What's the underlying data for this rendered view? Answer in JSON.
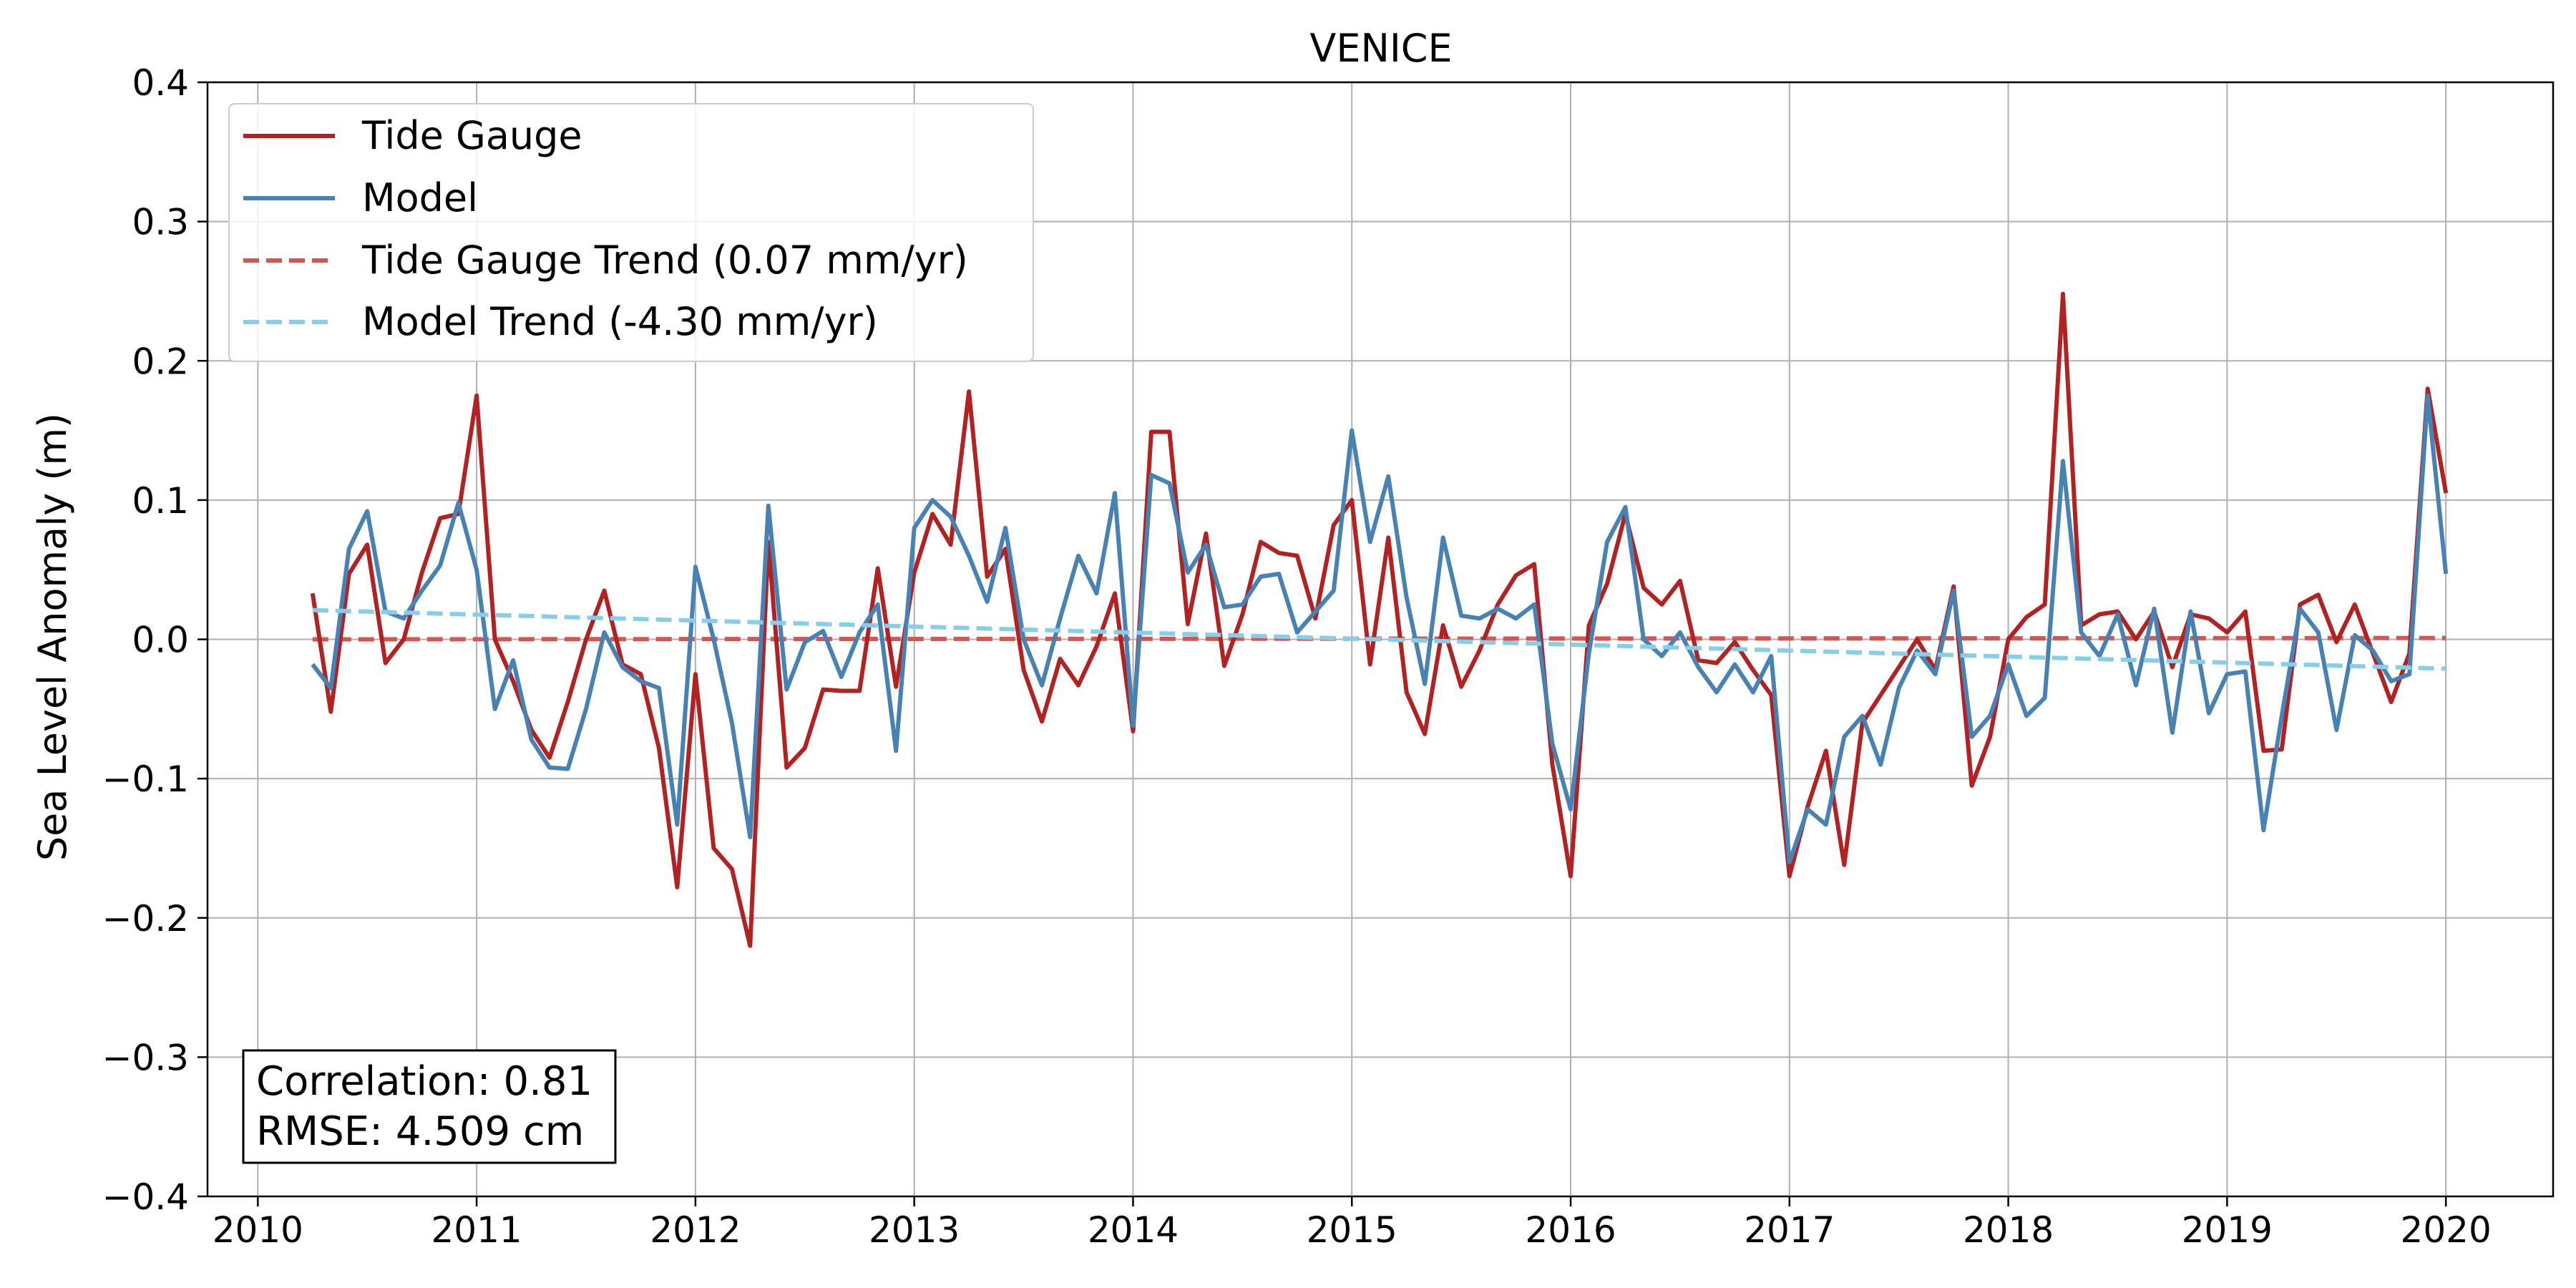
{
  "chart_data": {
    "type": "line",
    "title": "VENICE",
    "ylabel": "Sea Level Anomaly (m)",
    "xlabel": "",
    "xlim": [
      2009.77,
      2020.49
    ],
    "ylim": [
      -0.4,
      0.4
    ],
    "x_ticks": [
      2010,
      2011,
      2012,
      2013,
      2014,
      2015,
      2016,
      2017,
      2018,
      2019,
      2020
    ],
    "y_ticks": [
      -0.4,
      -0.3,
      -0.2,
      -0.1,
      0.0,
      0.1,
      0.2,
      0.3,
      0.4
    ],
    "y_tick_labels": [
      "−0.4",
      "−0.3",
      "−0.2",
      "−0.1",
      "0.0",
      "0.1",
      "0.2",
      "0.3",
      "0.4"
    ],
    "grid": true,
    "legend_position": "upper-left",
    "x_start": 2010.25,
    "x_step_months": 1,
    "series": [
      {
        "name": "Tide Gauge",
        "color": "#b22222",
        "style": "solid",
        "values": [
          0.033,
          -0.052,
          0.047,
          0.068,
          -0.017,
          0.0,
          0.048,
          0.087,
          0.09,
          0.175,
          0.0,
          -0.03,
          -0.065,
          -0.085,
          -0.045,
          0.0,
          0.035,
          -0.018,
          -0.025,
          -0.078,
          -0.178,
          -0.025,
          -0.15,
          -0.165,
          -0.22,
          0.07,
          -0.092,
          -0.078,
          -0.036,
          -0.037,
          -0.037,
          0.051,
          -0.034,
          0.048,
          0.09,
          0.068,
          0.178,
          0.045,
          0.065,
          -0.022,
          -0.059,
          -0.014,
          -0.033,
          -0.005,
          0.033,
          -0.066,
          0.149,
          0.149,
          0.011,
          0.076,
          -0.019,
          0.018,
          0.07,
          0.062,
          0.06,
          0.015,
          0.082,
          0.1,
          -0.018,
          0.073,
          -0.038,
          -0.068,
          0.01,
          -0.034,
          -0.008,
          0.025,
          0.046,
          0.054,
          -0.09,
          -0.17,
          0.01,
          0.04,
          0.09,
          0.037,
          0.025,
          0.042,
          -0.015,
          -0.017,
          -0.002,
          -0.022,
          -0.04,
          -0.17,
          -0.12,
          -0.08,
          -0.162,
          -0.06,
          -0.04,
          -0.02,
          0.0,
          -0.022,
          0.038,
          -0.105,
          -0.07,
          0.0,
          0.016,
          0.025,
          0.248,
          0.01,
          0.018,
          0.02,
          0.0,
          0.02,
          -0.02,
          0.018,
          0.015,
          0.005,
          0.02,
          -0.08,
          -0.079,
          0.025,
          0.032,
          -0.002,
          0.025,
          -0.01,
          -0.045,
          -0.01,
          0.18,
          0.105
        ]
      },
      {
        "name": "Model",
        "color": "#4682b4",
        "style": "solid",
        "values": [
          -0.018,
          -0.035,
          0.065,
          0.092,
          0.02,
          0.015,
          0.035,
          0.053,
          0.098,
          0.05,
          -0.05,
          -0.015,
          -0.072,
          -0.092,
          -0.093,
          -0.05,
          0.005,
          -0.02,
          -0.03,
          -0.035,
          -0.133,
          0.052,
          0.0,
          -0.06,
          -0.142,
          0.096,
          -0.036,
          -0.002,
          0.006,
          -0.027,
          0.005,
          0.025,
          -0.08,
          0.08,
          0.1,
          0.088,
          0.06,
          0.027,
          0.08,
          0.0,
          -0.033,
          0.015,
          0.06,
          0.033,
          0.105,
          -0.062,
          0.118,
          0.112,
          0.048,
          0.068,
          0.023,
          0.025,
          0.045,
          0.047,
          0.005,
          0.02,
          0.035,
          0.15,
          0.07,
          0.117,
          0.03,
          -0.032,
          0.073,
          0.017,
          0.015,
          0.022,
          0.015,
          0.025,
          -0.075,
          -0.122,
          -0.01,
          0.07,
          0.095,
          0.0,
          -0.012,
          0.005,
          -0.02,
          -0.038,
          -0.018,
          -0.038,
          -0.012,
          -0.16,
          -0.122,
          -0.133,
          -0.07,
          -0.055,
          -0.09,
          -0.035,
          -0.008,
          -0.025,
          0.035,
          -0.07,
          -0.055,
          -0.018,
          -0.055,
          -0.042,
          0.128,
          0.005,
          -0.012,
          0.018,
          -0.033,
          0.022,
          -0.067,
          0.02,
          -0.053,
          -0.025,
          -0.023,
          -0.137,
          -0.055,
          0.022,
          0.005,
          -0.065,
          0.003,
          -0.008,
          -0.03,
          -0.025,
          0.175,
          0.047
        ]
      },
      {
        "name": "Tide Gauge Trend (0.07 mm/yr)",
        "color": "#d9534f",
        "style": "dashed",
        "x": [
          2010.25,
          2020.0
        ],
        "values": [
          0.0,
          0.001
        ]
      },
      {
        "name": "Model Trend (-4.30 mm/yr)",
        "color": "#87ceeb",
        "style": "dashed",
        "x": [
          2010.25,
          2020.0
        ],
        "values": [
          0.021,
          -0.021
        ]
      }
    ],
    "annotation": {
      "correlation": "Correlation: 0.81",
      "rmse": "RMSE: 4.509 cm"
    }
  }
}
